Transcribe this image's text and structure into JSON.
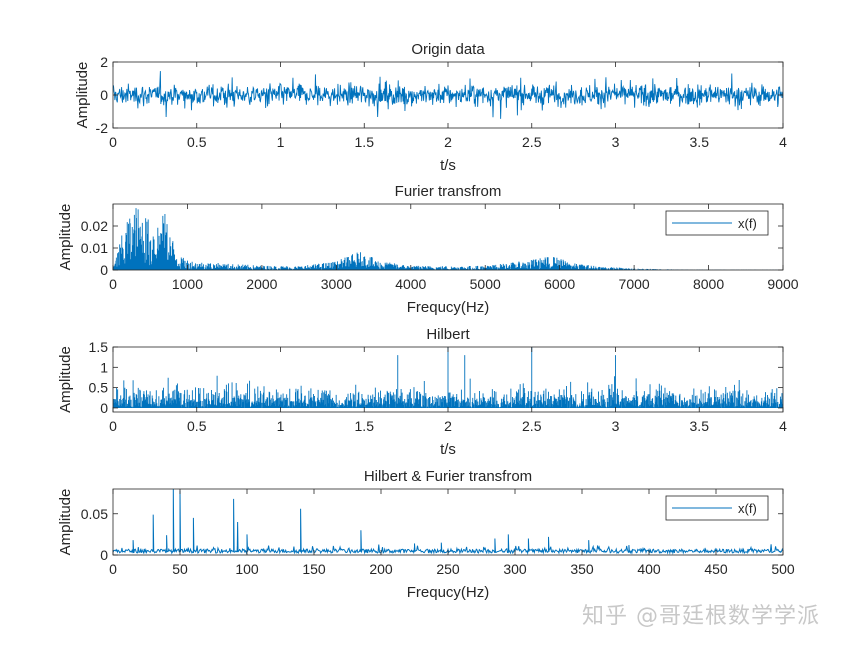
{
  "watermark": "知乎 @哥廷根数学学派",
  "colors": {
    "line": "#0072bd",
    "axis": "#262626",
    "text": "#262626"
  },
  "chart_data": [
    {
      "type": "line",
      "title": "Origin data",
      "xlabel": "t/s",
      "ylabel": "Amplitude",
      "xlim": [
        0,
        4
      ],
      "ylim": [
        -2,
        2
      ],
      "xticks": [
        "0",
        "0.5",
        "1",
        "1.5",
        "2",
        "2.5",
        "3",
        "3.5",
        "4"
      ],
      "yticks": [
        "-2",
        "0",
        "2"
      ],
      "legend": null,
      "series": [
        {
          "description": "random noise signal sampled over 0-4 s, amplitude mostly within -1 to 1 with peaks near ±1.4",
          "x_range": [
            0,
            4
          ],
          "envelope": [
            -1.4,
            1.4
          ]
        }
      ]
    },
    {
      "type": "line",
      "title": "Furier transfrom",
      "xlabel": "Frequcy(Hz)",
      "ylabel": "Amplitude",
      "xlim": [
        0,
        9000
      ],
      "ylim": [
        0,
        0.03
      ],
      "xticks": [
        "0",
        "1000",
        "2000",
        "3000",
        "4000",
        "5000",
        "6000",
        "7000",
        "8000",
        "9000"
      ],
      "yticks": [
        "0",
        "0.01",
        "0.02"
      ],
      "legend": {
        "entries": [
          "x(f)"
        ],
        "location": "top-right"
      },
      "series": [
        {
          "name": "x(f)",
          "envelope_points": [
            [
              0,
              0.0
            ],
            [
              80,
              0.012
            ],
            [
              200,
              0.024
            ],
            [
              300,
              0.03
            ],
            [
              400,
              0.028
            ],
            [
              500,
              0.022
            ],
            [
              600,
              0.024
            ],
            [
              700,
              0.026
            ],
            [
              800,
              0.015
            ],
            [
              900,
              0.006
            ],
            [
              1100,
              0.004
            ],
            [
              1500,
              0.003
            ],
            [
              2000,
              0.002
            ],
            [
              2500,
              0.0018
            ],
            [
              3000,
              0.004
            ],
            [
              3300,
              0.0085
            ],
            [
              3600,
              0.004
            ],
            [
              4000,
              0.002
            ],
            [
              4500,
              0.0018
            ],
            [
              5000,
              0.002
            ],
            [
              5500,
              0.004
            ],
            [
              5900,
              0.0065
            ],
            [
              6200,
              0.003
            ],
            [
              6600,
              0.0015
            ],
            [
              7000,
              0.0007
            ],
            [
              7500,
              0.0003
            ],
            [
              8000,
              0.00015
            ],
            [
              9000,
              0.0001
            ]
          ]
        }
      ]
    },
    {
      "type": "line",
      "title": "Hilbert",
      "xlabel": "t/s",
      "ylabel": "Amplitude",
      "xlim": [
        0,
        4
      ],
      "ylim": [
        -0.1,
        1.5
      ],
      "xticks": [
        "0",
        "0.5",
        "1",
        "1.5",
        "2",
        "2.5",
        "3",
        "3.5",
        "4"
      ],
      "yticks": [
        "0",
        "0.5",
        "1",
        "1.5"
      ],
      "legend": null,
      "series": [
        {
          "description": "envelope of the noise signal, values 0 to ~1.5, most peaks below 1",
          "x_range": [
            0,
            4
          ],
          "range": [
            0,
            1.5
          ],
          "peaks": [
            [
              1.7,
              1.3
            ],
            [
              2.0,
              1.5
            ],
            [
              2.1,
              1.3
            ],
            [
              2.5,
              1.5
            ],
            [
              3.0,
              1.3
            ]
          ]
        }
      ]
    },
    {
      "type": "line",
      "title": "Hilbert & Furier transfrom",
      "xlabel": "Frequcy(Hz)",
      "ylabel": "Amplitude",
      "xlim": [
        0,
        500
      ],
      "ylim": [
        0,
        0.08
      ],
      "xticks": [
        "0",
        "50",
        "100",
        "150",
        "200",
        "250",
        "300",
        "350",
        "400",
        "450",
        "500"
      ],
      "yticks": [
        "0",
        "0.05"
      ],
      "legend": {
        "entries": [
          "x(f)"
        ],
        "location": "top-right"
      },
      "series": [
        {
          "name": "x(f)",
          "peaks": [
            [
              15,
              0.018
            ],
            [
              30,
              0.049
            ],
            [
              40,
              0.024
            ],
            [
              45,
              0.08
            ],
            [
              50,
              0.078
            ],
            [
              60,
              0.045
            ],
            [
              90,
              0.068
            ],
            [
              93,
              0.04
            ],
            [
              100,
              0.025
            ],
            [
              140,
              0.056
            ],
            [
              185,
              0.03
            ],
            [
              225,
              0.014
            ],
            [
              245,
              0.015
            ],
            [
              285,
              0.02
            ],
            [
              295,
              0.025
            ],
            [
              310,
              0.02
            ],
            [
              325,
              0.022
            ],
            [
              355,
              0.018
            ],
            [
              385,
              0.012
            ]
          ],
          "baseline": 0.004
        }
      ]
    }
  ]
}
